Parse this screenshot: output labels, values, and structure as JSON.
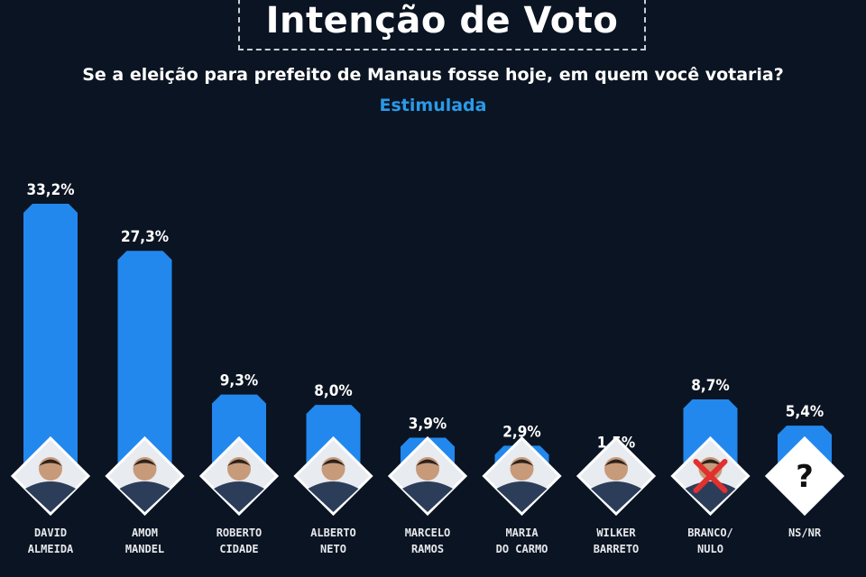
{
  "header": {
    "title": "Intenção de Voto",
    "subtitle": "Se a eleição para prefeito de Manaus fosse hoje, em quem você votaria?",
    "tag": "Estimulada"
  },
  "colors": {
    "bar": "#2288ee",
    "background": "#0b1422",
    "accent": "#2b9ae8"
  },
  "chart_data": {
    "type": "bar",
    "title": "Intenção de Voto",
    "subtitle": "Se a eleição para prefeito de Manaus fosse hoje, em quem você votaria?",
    "categories": [
      [
        "DAVID",
        "ALMEIDA"
      ],
      [
        "AMOM",
        "MANDEL"
      ],
      [
        "ROBERTO",
        "CIDADE"
      ],
      [
        "ALBERTO",
        "NETO"
      ],
      [
        "MARCELO",
        "RAMOS"
      ],
      [
        "MARIA",
        "DO CARMO"
      ],
      [
        "WILKER",
        "BARRETO"
      ],
      [
        "BRANCO/",
        "NULO"
      ],
      [
        "NS/NR"
      ]
    ],
    "values": [
      33.2,
      27.3,
      9.3,
      8.0,
      3.9,
      2.9,
      1.5,
      8.7,
      5.4
    ],
    "data_labels": [
      "33,2%",
      "27,3%",
      "9,3%",
      "8,0%",
      "3,9%",
      "2,9%",
      "1,5%",
      "8,7%",
      "5,4%"
    ],
    "ylim": [
      0,
      33.2
    ],
    "grid": false,
    "legend": "none"
  },
  "icons": [
    "candidate-photo-icon",
    "candidate-photo-icon",
    "candidate-photo-icon",
    "candidate-photo-icon",
    "candidate-photo-icon",
    "candidate-photo-icon",
    "candidate-photo-icon",
    "null-vote-icon",
    "question-mark-icon"
  ],
  "nsnr_symbol": "?"
}
